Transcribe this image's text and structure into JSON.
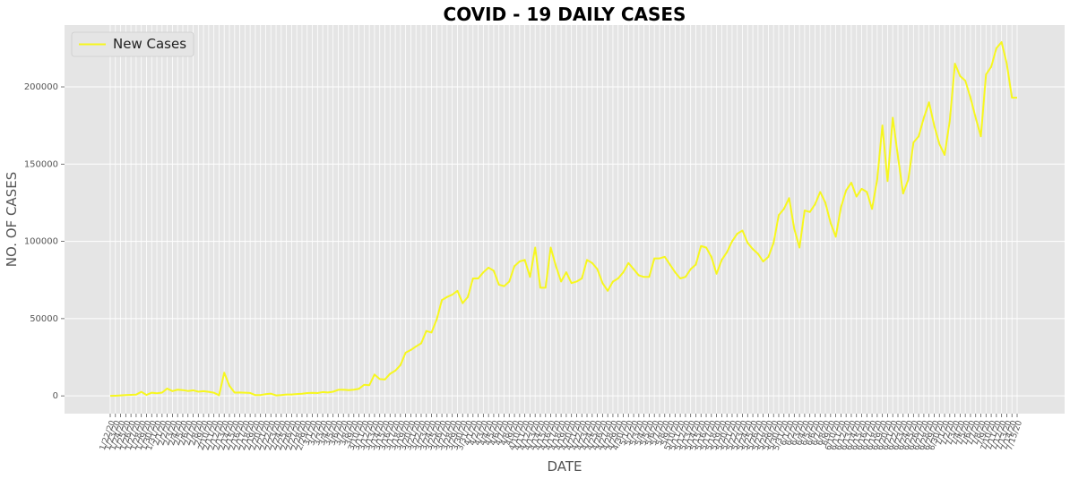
{
  "chart_data": {
    "type": "line",
    "title": "COVID - 19 DAILY CASES",
    "xlabel": "DATE",
    "ylabel": "NO. OF CASES",
    "categories": [
      "1/22/20",
      "1/23/20",
      "1/24/20",
      "1/25/20",
      "1/26/20",
      "1/27/20",
      "1/28/20",
      "1/29/20",
      "1/30/20",
      "1/31/20",
      "2/1/20",
      "2/2/20",
      "2/3/20",
      "2/4/20",
      "2/5/20",
      "2/6/20",
      "2/7/20",
      "2/8/20",
      "2/9/20",
      "2/10/20",
      "2/11/20",
      "2/12/20",
      "2/13/20",
      "2/14/20",
      "2/15/20",
      "2/16/20",
      "2/17/20",
      "2/18/20",
      "2/19/20",
      "2/20/20",
      "2/21/20",
      "2/22/20",
      "2/23/20",
      "2/24/20",
      "2/25/20",
      "2/26/20",
      "2/27/20",
      "2/28/20",
      "2/29/20",
      "3/1/20",
      "3/2/20",
      "3/3/20",
      "3/4/20",
      "3/5/20",
      "3/6/20",
      "3/7/20",
      "3/8/20",
      "3/9/20",
      "3/10/20",
      "3/11/20",
      "3/12/20",
      "3/13/20",
      "3/14/20",
      "3/15/20",
      "3/16/20",
      "3/17/20",
      "3/18/20",
      "3/19/20",
      "3/20/20",
      "3/21/20",
      "3/22/20",
      "3/23/20",
      "3/24/20",
      "3/25/20",
      "3/26/20",
      "3/27/20",
      "3/28/20",
      "3/29/20",
      "3/30/20",
      "3/31/20",
      "4/1/20",
      "4/2/20",
      "4/3/20",
      "4/4/20",
      "4/5/20",
      "4/6/20",
      "4/7/20",
      "4/8/20",
      "4/9/20",
      "4/10/20",
      "4/11/20",
      "4/12/20",
      "4/13/20",
      "4/14/20",
      "4/15/20",
      "4/16/20",
      "4/17/20",
      "4/18/20",
      "4/19/20",
      "4/20/20",
      "4/21/20",
      "4/22/20",
      "4/23/20",
      "4/24/20",
      "4/25/20",
      "4/26/20",
      "4/27/20",
      "4/28/20",
      "4/29/20",
      "4/30/20",
      "5/1/20",
      "5/2/20",
      "5/3/20",
      "5/4/20",
      "5/5/20",
      "5/6/20",
      "5/7/20",
      "5/8/20",
      "5/9/20",
      "5/10/20",
      "5/11/20",
      "5/12/20",
      "5/13/20",
      "5/14/20",
      "5/15/20",
      "5/16/20",
      "5/17/20",
      "5/18/20",
      "5/19/20",
      "5/20/20",
      "5/21/20",
      "5/22/20",
      "5/23/20",
      "5/24/20",
      "5/25/20",
      "5/26/20",
      "5/27/20",
      "5/28/20",
      "5/29/20",
      "5/30/20",
      "5/31/20",
      "6/1/20",
      "6/2/20",
      "6/3/20",
      "6/4/20",
      "6/5/20",
      "6/6/20",
      "6/7/20",
      "6/8/20",
      "6/9/20",
      "6/10/20",
      "6/11/20",
      "6/12/20",
      "6/13/20",
      "6/14/20",
      "6/15/20",
      "6/16/20",
      "6/17/20",
      "6/18/20",
      "6/19/20",
      "6/20/20",
      "6/21/20",
      "6/22/20",
      "6/23/20",
      "6/24/20",
      "6/25/20",
      "6/26/20",
      "6/27/20",
      "6/28/20",
      "6/29/20",
      "6/30/20",
      "7/1/20",
      "7/2/20",
      "7/3/20",
      "7/4/20",
      "7/5/20",
      "7/6/20",
      "7/7/20",
      "7/8/20",
      "7/9/20",
      "7/10/20",
      "7/11/20",
      "7/12/20",
      "7/13/20",
      "7/14/20",
      "7/15/20"
    ],
    "series": [
      {
        "name": "New Cases",
        "color": "#f7f71e",
        "values": [
          0,
          99,
          287,
          493,
          684,
          809,
          2651,
          588,
          2068,
          1693,
          2111,
          4749,
          3094,
          4011,
          3743,
          3159,
          3597,
          2729,
          3032,
          2612,
          2041,
          418,
          15026,
          6527,
          2141,
          2182,
          2034,
          1878,
          503,
          558,
          1097,
          1450,
          330,
          530,
          880,
          900,
          1200,
          1370,
          1800,
          2000,
          1850,
          2450,
          2200,
          2700,
          3900,
          4000,
          3700,
          4000,
          4600,
          7200,
          6900,
          13800,
          10900,
          10600,
          14300,
          16300,
          19900,
          28000,
          29700,
          32000,
          34000,
          42000,
          41000,
          49500,
          62000,
          64000,
          65500,
          68000,
          60000,
          64000,
          76000,
          76000,
          80000,
          83000,
          81000,
          72000,
          71000,
          74000,
          84000,
          87000,
          88000,
          77000,
          96000,
          70000,
          70000,
          96000,
          84000,
          74000,
          80000,
          73000,
          74000,
          76000,
          88000,
          86000,
          82000,
          73000,
          68000,
          74000,
          76000,
          80000,
          86000,
          82000,
          78000,
          77000,
          77000,
          89000,
          89000,
          90000,
          85000,
          80000,
          76000,
          77000,
          82000,
          85000,
          97000,
          96000,
          90000,
          79000,
          88000,
          93000,
          100000,
          105000,
          107000,
          99000,
          95000,
          92000,
          87000,
          90000,
          99000,
          117000,
          121000,
          128000,
          108000,
          96000,
          120000,
          119000,
          124000,
          132000,
          125000,
          112000,
          103000,
          122000,
          133000,
          138000,
          129000,
          134000,
          132000,
          121000,
          140000,
          175000,
          139000,
          180000,
          155000,
          131000,
          140000,
          164000,
          168000,
          180000,
          190000,
          175000,
          163000,
          156000,
          178000,
          215000,
          207000,
          204000,
          193000,
          180000,
          168000,
          208000,
          213000,
          225000,
          229000,
          215000,
          193000,
          193000
        ]
      }
    ],
    "ylim": [
      -11500,
      240000
    ],
    "yticks": [
      0,
      50000,
      100000,
      150000,
      200000
    ],
    "grid": true,
    "legend": "upper left"
  }
}
